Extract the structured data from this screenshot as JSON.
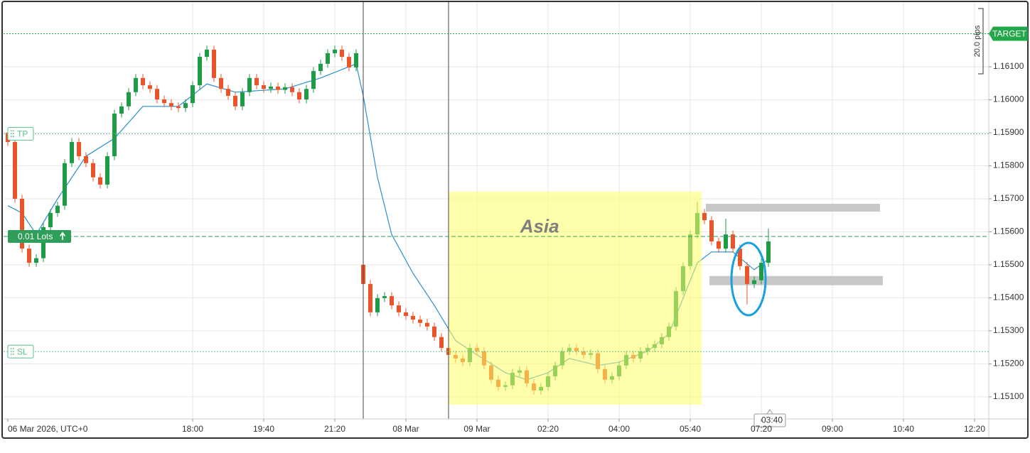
{
  "chart_data": {
    "type": "candlestick",
    "x": [
      1,
      2,
      3,
      4,
      5,
      6,
      7,
      8,
      9,
      10,
      11,
      12,
      13,
      14,
      15,
      16,
      17,
      18,
      19,
      20,
      21,
      22,
      23,
      24,
      25,
      26,
      27,
      28,
      29,
      30,
      31,
      32,
      33,
      34,
      35,
      36,
      37,
      38,
      39,
      40,
      41,
      42,
      43,
      44,
      45,
      46,
      47,
      48,
      49,
      50,
      51,
      52,
      53,
      54,
      55,
      56,
      57,
      58,
      59,
      60,
      61,
      62,
      63,
      64,
      65,
      66,
      67,
      68,
      69,
      70,
      71,
      72,
      73,
      74,
      75,
      76,
      77,
      78,
      79,
      80,
      81,
      82,
      83,
      84,
      85,
      86,
      87,
      88,
      89,
      90,
      91,
      92,
      93,
      94,
      95,
      96,
      97,
      98,
      99,
      100,
      101,
      102,
      103,
      104,
      105,
      106,
      107,
      108
    ],
    "open": [
      1.159,
      1.15872,
      1.157,
      1.15549,
      1.15506,
      1.1552,
      1.15614,
      1.15657,
      1.15679,
      1.15808,
      1.15872,
      1.15829,
      1.15808,
      1.15765,
      1.15743,
      1.15829,
      1.15958,
      1.1598,
      1.16023,
      1.16066,
      1.16044,
      1.16033,
      1.16001,
      1.1599,
      1.1598,
      1.15975,
      1.1599,
      1.16044,
      1.1613,
      1.16152,
      1.16066,
      1.16033,
      1.16012,
      1.1598,
      1.16023,
      1.16066,
      1.16044,
      1.16033,
      1.1604,
      1.1603,
      1.16038,
      1.16023,
      1.16001,
      1.16033,
      1.16087,
      1.16109,
      1.16141,
      1.16152,
      1.1613,
      1.16098,
      1.155,
      1.15442,
      1.15356,
      1.15399,
      1.15405,
      1.15377,
      1.15356,
      1.15345,
      1.15334,
      1.15324,
      1.15313,
      1.15281,
      1.15248,
      1.15227,
      1.15216,
      1.15205,
      1.15248,
      1.15238,
      1.15195,
      1.15152,
      1.1513,
      1.15135,
      1.15173,
      1.1518,
      1.15141,
      1.15119,
      1.1513,
      1.15162,
      1.15195,
      1.15238,
      1.15248,
      1.15238,
      1.15227,
      1.15232,
      1.15184,
      1.15152,
      1.15162,
      1.15195,
      1.15227,
      1.15216,
      1.15238,
      1.15248,
      1.15259,
      1.15281,
      1.15313,
      1.1542,
      1.15496,
      1.15592,
      1.15657,
      1.15635,
      1.15571,
      1.15549,
      1.15592,
      1.15549,
      1.15496,
      1.15442,
      1.15453,
      1.15506
    ],
    "high": [
      1.15912,
      1.15884,
      1.15712,
      1.15561,
      1.15532,
      1.15626,
      1.15669,
      1.15691,
      1.1582,
      1.15884,
      1.15884,
      1.15841,
      1.1582,
      1.15777,
      1.15841,
      1.1597,
      1.15992,
      1.16035,
      1.16078,
      1.16078,
      1.16056,
      1.16045,
      1.16013,
      1.16002,
      1.15992,
      1.16002,
      1.16056,
      1.16142,
      1.16164,
      1.16164,
      1.16078,
      1.16045,
      1.16024,
      1.16035,
      1.16078,
      1.16078,
      1.16056,
      1.16052,
      1.16052,
      1.1605,
      1.1605,
      1.16035,
      1.16045,
      1.16099,
      1.16121,
      1.16153,
      1.16164,
      1.16164,
      1.16142,
      1.16153,
      1.15512,
      1.15454,
      1.15411,
      1.15417,
      1.15417,
      1.15389,
      1.15368,
      1.15357,
      1.15346,
      1.15336,
      1.15325,
      1.15293,
      1.1526,
      1.15239,
      1.15228,
      1.1526,
      1.1526,
      1.1525,
      1.15207,
      1.15164,
      1.15147,
      1.15185,
      1.15192,
      1.15192,
      1.15153,
      1.15142,
      1.15174,
      1.15207,
      1.1525,
      1.1526,
      1.1526,
      1.1525,
      1.15244,
      1.15244,
      1.15196,
      1.15174,
      1.15207,
      1.15239,
      1.15239,
      1.1525,
      1.1526,
      1.15271,
      1.15293,
      1.15325,
      1.15432,
      1.15508,
      1.15604,
      1.1569,
      1.15669,
      1.15647,
      1.15583,
      1.1564,
      1.15604,
      1.15561,
      1.15508,
      1.15465,
      1.15518,
      1.1561
    ],
    "low": [
      1.1586,
      1.15688,
      1.15537,
      1.15494,
      1.15494,
      1.15508,
      1.15602,
      1.15645,
      1.15667,
      1.15796,
      1.15817,
      1.15796,
      1.15753,
      1.15731,
      1.15731,
      1.15817,
      1.15946,
      1.15968,
      1.16011,
      1.16032,
      1.16021,
      1.15989,
      1.15978,
      1.15968,
      1.15963,
      1.15963,
      1.15978,
      1.16032,
      1.16118,
      1.16054,
      1.16021,
      1.16,
      1.15968,
      1.15968,
      1.16011,
      1.16032,
      1.16021,
      1.16021,
      1.16018,
      1.16018,
      1.16011,
      1.15989,
      1.15989,
      1.16021,
      1.16075,
      1.16097,
      1.16129,
      1.16118,
      1.16086,
      1.16086,
      1.1543,
      1.15344,
      1.15344,
      1.15387,
      1.15365,
      1.15344,
      1.15333,
      1.15322,
      1.15312,
      1.15301,
      1.15269,
      1.15236,
      1.15215,
      1.15204,
      1.15193,
      1.15193,
      1.15226,
      1.15183,
      1.1514,
      1.15118,
      1.15118,
      1.15123,
      1.15161,
      1.15129,
      1.15107,
      1.15107,
      1.15118,
      1.1515,
      1.15183,
      1.15226,
      1.15226,
      1.15215,
      1.15215,
      1.15172,
      1.1514,
      1.1514,
      1.1515,
      1.15183,
      1.15204,
      1.15204,
      1.15226,
      1.15236,
      1.15247,
      1.15269,
      1.15301,
      1.15408,
      1.15484,
      1.1558,
      1.15623,
      1.15559,
      1.15537,
      1.15537,
      1.15537,
      1.15484,
      1.1538,
      1.1543,
      1.15441,
      1.15494
    ],
    "close": [
      1.15872,
      1.157,
      1.15549,
      1.15506,
      1.1552,
      1.15614,
      1.15657,
      1.15679,
      1.15808,
      1.15872,
      1.15829,
      1.15808,
      1.15765,
      1.15743,
      1.15829,
      1.15958,
      1.1598,
      1.16023,
      1.16066,
      1.16044,
      1.16033,
      1.16001,
      1.1599,
      1.1598,
      1.15975,
      1.1599,
      1.16044,
      1.1613,
      1.16152,
      1.16066,
      1.16033,
      1.16012,
      1.1598,
      1.16023,
      1.16066,
      1.16044,
      1.16033,
      1.1604,
      1.1603,
      1.16038,
      1.16023,
      1.16001,
      1.16033,
      1.16087,
      1.16109,
      1.16141,
      1.16152,
      1.1613,
      1.16098,
      1.16141,
      1.15442,
      1.15356,
      1.15399,
      1.15405,
      1.15377,
      1.15356,
      1.15345,
      1.15334,
      1.15324,
      1.15313,
      1.15281,
      1.15248,
      1.15227,
      1.15216,
      1.15205,
      1.15248,
      1.15238,
      1.15195,
      1.15152,
      1.1513,
      1.15135,
      1.15173,
      1.1518,
      1.15141,
      1.15119,
      1.1513,
      1.15162,
      1.15195,
      1.15238,
      1.15248,
      1.15238,
      1.15227,
      1.15232,
      1.15184,
      1.15152,
      1.15162,
      1.15195,
      1.15227,
      1.15216,
      1.15238,
      1.15248,
      1.15259,
      1.15281,
      1.15313,
      1.1542,
      1.15496,
      1.15592,
      1.15657,
      1.15635,
      1.15571,
      1.15549,
      1.15592,
      1.15549,
      1.15496,
      1.15442,
      1.15453,
      1.15506,
      1.15571
    ],
    "up_color": "#1f9a47",
    "down_color": "#e8552a",
    "ma": {
      "color": "#2a8fd0",
      "x": [
        1,
        3,
        5,
        8,
        12,
        16,
        20,
        25,
        29,
        33,
        40,
        45,
        50,
        51,
        53,
        55,
        58,
        61,
        64,
        67,
        71,
        74,
        77,
        80,
        84,
        87,
        91,
        94,
        96,
        98,
        100,
        103,
        106,
        108
      ],
      "values": [
        1.15679,
        1.15657,
        1.15592,
        1.157,
        1.15829,
        1.15883,
        1.1598,
        1.1598,
        1.16048,
        1.16023,
        1.16033,
        1.16066,
        1.16109,
        1.16012,
        1.15765,
        1.15592,
        1.15474,
        1.15377,
        1.1527,
        1.15227,
        1.15173,
        1.15152,
        1.15173,
        1.15216,
        1.15195,
        1.15205,
        1.15238,
        1.15291,
        1.15399,
        1.15506,
        1.15539,
        1.15539,
        1.15485,
        1.15517
      ]
    },
    "sessions": [
      {
        "label": "Asia",
        "x": [
          63,
          98.6
        ],
        "y": [
          1.15076,
          1.15722
        ],
        "color": "#ffff66"
      }
    ],
    "zones": [
      {
        "x": [
          99.2,
          123.7
        ],
        "y": [
          1.15661,
          1.15685
        ],
        "color": "#c8c8c8"
      },
      {
        "x": [
          99.7,
          124.1
        ],
        "y": [
          1.15438,
          1.15466
        ],
        "color": "#c8c8c8"
      }
    ],
    "levels": [
      {
        "label": "TARGET",
        "value": 1.162,
        "style": "axis-tag",
        "color": "#22a84a"
      },
      {
        "label": "TP",
        "value": 1.15897,
        "style": "outline",
        "color": "#5cc08a"
      },
      {
        "label": "SL",
        "value": 1.15237,
        "style": "outline",
        "color": "#5cc08a"
      },
      {
        "label": "0.01 Lots",
        "value": 1.15586,
        "style": "filled",
        "color": "#2e9e5a"
      }
    ],
    "pips_label": "20.0 pips",
    "countdown": "03:40",
    "xlim": [
      0,
      139
    ],
    "xticks": [
      {
        "value": 1,
        "label": "06 Mar 2026, UTC+0"
      },
      {
        "value": 27,
        "label": "18:00"
      },
      {
        "value": 37,
        "label": "19:40"
      },
      {
        "value": 47,
        "label": "21:20"
      },
      {
        "value": 57,
        "label": "08 Mar"
      },
      {
        "value": 67,
        "label": "09 Mar"
      },
      {
        "value": 77,
        "label": "02:20"
      },
      {
        "value": 87,
        "label": "04:00"
      },
      {
        "value": 97,
        "label": "05:40"
      },
      {
        "value": 107,
        "label": "07:20"
      },
      {
        "value": 117,
        "label": "09:00"
      },
      {
        "value": 127,
        "label": "10:40"
      },
      {
        "value": 137,
        "label": "12:20"
      }
    ],
    "ylim": [
      1.15033,
      1.16298
    ],
    "yticks": [
      {
        "value": 1.161,
        "label": "1.16100"
      },
      {
        "value": 1.16,
        "label": "1.16000"
      },
      {
        "value": 1.159,
        "label": "1.15900"
      },
      {
        "value": 1.158,
        "label": "1.15800"
      },
      {
        "value": 1.157,
        "label": "1.15700"
      },
      {
        "value": 1.156,
        "label": "1.15600"
      },
      {
        "value": 1.155,
        "label": "1.15500"
      },
      {
        "value": 1.154,
        "label": "1.15400"
      },
      {
        "value": 1.153,
        "label": "1.15300"
      },
      {
        "value": 1.152,
        "label": "1.15200"
      },
      {
        "value": 1.151,
        "label": "1.15100"
      }
    ],
    "grid": true
  }
}
